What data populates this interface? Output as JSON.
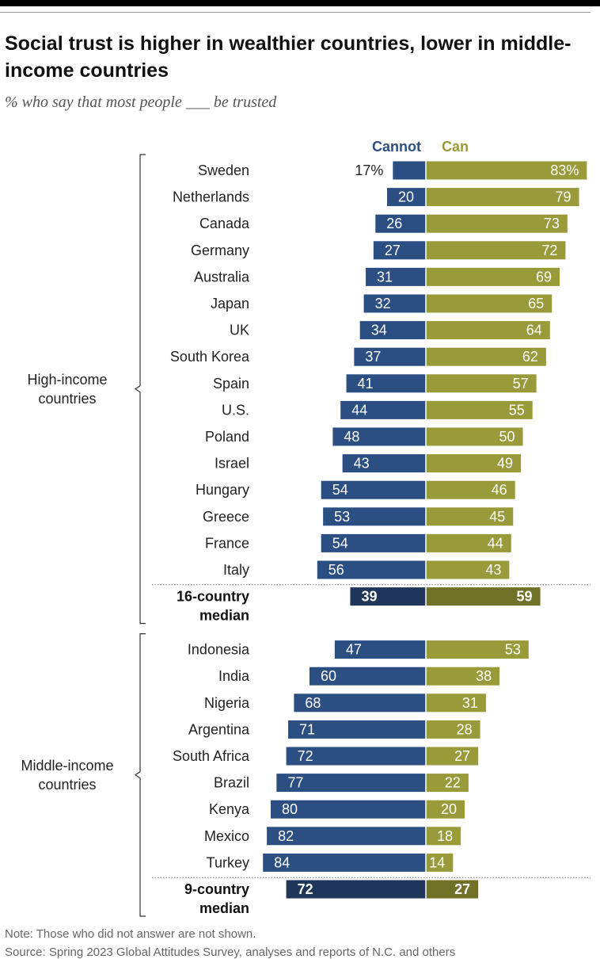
{
  "header": {
    "title": "Social trust is higher in wealthier countries, lower in middle-income countries",
    "subtitle": "% who say that most people ___ be trusted"
  },
  "footer": {
    "note": "Note: Those who did not answer are not shown.",
    "source": "Source: Spring 2023 Global Attitudes Survey, analyses and reports of N.C. and others"
  },
  "chart_data": {
    "type": "bar",
    "orientation": "horizontal-diverging",
    "series": [
      {
        "name": "Cannot",
        "color": "#2b4e83",
        "median_color": "#1f3559"
      },
      {
        "name": "Can",
        "color": "#999b3b",
        "median_color": "#6f7127"
      }
    ],
    "groups": [
      {
        "label_lines": [
          "High-income",
          "countries"
        ],
        "rows": [
          {
            "country": "Sweden",
            "cannot": 17,
            "can": 83,
            "cannot_label": "17%",
            "can_label": "83%"
          },
          {
            "country": "Netherlands",
            "cannot": 20,
            "can": 79,
            "cannot_label": "20",
            "can_label": "79"
          },
          {
            "country": "Canada",
            "cannot": 26,
            "can": 73,
            "cannot_label": "26",
            "can_label": "73"
          },
          {
            "country": "Germany",
            "cannot": 27,
            "can": 72,
            "cannot_label": "27",
            "can_label": "72"
          },
          {
            "country": "Australia",
            "cannot": 31,
            "can": 69,
            "cannot_label": "31",
            "can_label": "69"
          },
          {
            "country": "Japan",
            "cannot": 32,
            "can": 65,
            "cannot_label": "32",
            "can_label": "65"
          },
          {
            "country": "UK",
            "cannot": 34,
            "can": 64,
            "cannot_label": "34",
            "can_label": "64"
          },
          {
            "country": "South Korea",
            "cannot": 37,
            "can": 62,
            "cannot_label": "37",
            "can_label": "62"
          },
          {
            "country": "Spain",
            "cannot": 41,
            "can": 57,
            "cannot_label": "41",
            "can_label": "57"
          },
          {
            "country": "U.S.",
            "cannot": 44,
            "can": 55,
            "cannot_label": "44",
            "can_label": "55"
          },
          {
            "country": "Poland",
            "cannot": 48,
            "can": 50,
            "cannot_label": "48",
            "can_label": "50"
          },
          {
            "country": "Israel",
            "cannot": 43,
            "can": 49,
            "cannot_label": "43",
            "can_label": "49"
          },
          {
            "country": "Hungary",
            "cannot": 54,
            "can": 46,
            "cannot_label": "54",
            "can_label": "46"
          },
          {
            "country": "Greece",
            "cannot": 53,
            "can": 45,
            "cannot_label": "53",
            "can_label": "45"
          },
          {
            "country": "France",
            "cannot": 54,
            "can": 44,
            "cannot_label": "54",
            "can_label": "44"
          },
          {
            "country": "Italy",
            "cannot": 56,
            "can": 43,
            "cannot_label": "56",
            "can_label": "43"
          }
        ],
        "median": {
          "label_lines": [
            "16-country",
            "median"
          ],
          "cannot": 39,
          "can": 59,
          "cannot_label": "39",
          "can_label": "59"
        }
      },
      {
        "label_lines": [
          "Middle-income",
          "countries"
        ],
        "rows": [
          {
            "country": "Indonesia",
            "cannot": 47,
            "can": 53,
            "cannot_label": "47",
            "can_label": "53"
          },
          {
            "country": "India",
            "cannot": 60,
            "can": 38,
            "cannot_label": "60",
            "can_label": "38"
          },
          {
            "country": "Nigeria",
            "cannot": 68,
            "can": 31,
            "cannot_label": "68",
            "can_label": "31"
          },
          {
            "country": "Argentina",
            "cannot": 71,
            "can": 28,
            "cannot_label": "71",
            "can_label": "28"
          },
          {
            "country": "South Africa",
            "cannot": 72,
            "can": 27,
            "cannot_label": "72",
            "can_label": "27"
          },
          {
            "country": "Brazil",
            "cannot": 77,
            "can": 22,
            "cannot_label": "77",
            "can_label": "22"
          },
          {
            "country": "Kenya",
            "cannot": 80,
            "can": 20,
            "cannot_label": "80",
            "can_label": "20"
          },
          {
            "country": "Mexico",
            "cannot": 82,
            "can": 18,
            "cannot_label": "82",
            "can_label": "18"
          },
          {
            "country": "Turkey",
            "cannot": 84,
            "can": 14,
            "cannot_label": "84",
            "can_label": "14"
          }
        ],
        "median": {
          "label_lines": [
            "9-country",
            "median"
          ],
          "cannot": 72,
          "can": 27,
          "cannot_label": "72",
          "can_label": "27"
        }
      }
    ]
  }
}
